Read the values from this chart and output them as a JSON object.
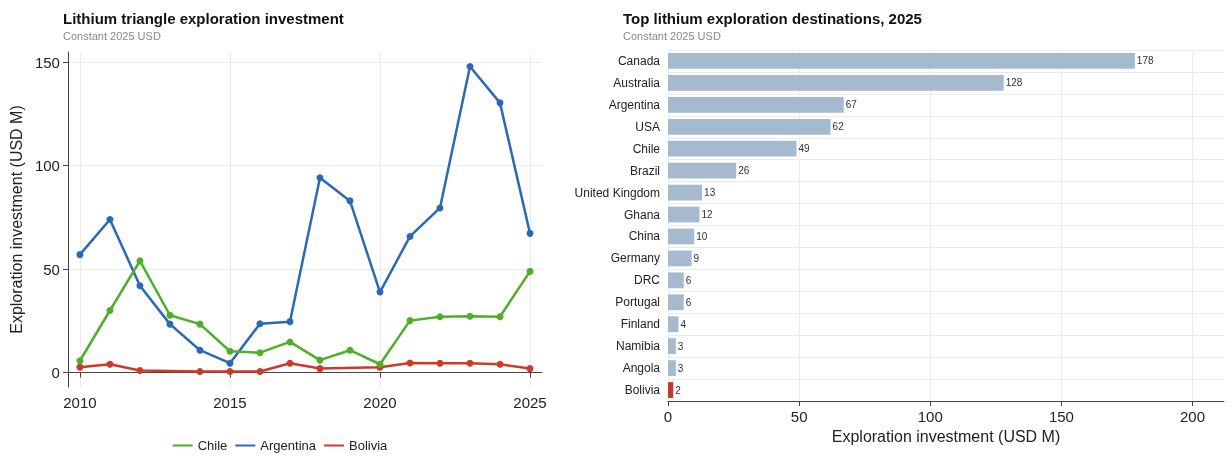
{
  "chart_data": [
    {
      "type": "line",
      "title": "Lithium triangle exploration investment",
      "subtitle": "Constant 2025 USD",
      "ylabel": "Exploration investment (USD M)",
      "x": [
        2010,
        2011,
        2012,
        2013,
        2014,
        2015,
        2016,
        2017,
        2018,
        2019,
        2020,
        2021,
        2022,
        2023,
        2024,
        2025
      ],
      "series": [
        {
          "name": "Chile",
          "color": "#4daf2a",
          "values": [
            5.7,
            30,
            54,
            27.7,
            23.4,
            10.3,
            9.6,
            14.8,
            6,
            10.8,
            4,
            25.1,
            27,
            27.2,
            27,
            48.9
          ]
        },
        {
          "name": "Argentina",
          "color": "#2a6ab4",
          "values": [
            57,
            74,
            42,
            23.4,
            10.8,
            4.5,
            23.6,
            24.6,
            94.2,
            83,
            38.9,
            65.8,
            79.6,
            148,
            130.4,
            67.3
          ]
        },
        {
          "name": "Bolivia",
          "color": "#cc3a2b",
          "values": [
            2.6,
            4,
            1,
            null,
            0.5,
            0.5,
            0.5,
            4.5,
            1.9,
            null,
            2.6,
            4.6,
            4.5,
            4.5,
            4,
            1.9
          ]
        }
      ],
      "xlim": [
        2009.6,
        2025.4
      ],
      "xticks": [
        2010,
        2015,
        2020,
        2025
      ],
      "ylim": [
        -7,
        155
      ],
      "yticks": [
        0,
        50,
        100,
        150
      ],
      "grid": true,
      "legend": "bottom",
      "marker": "circle",
      "line_style": "solid"
    },
    {
      "type": "bar",
      "orientation": "horizontal",
      "title": "Top lithium exploration destinations, 2025",
      "subtitle": "Constant 2025 USD",
      "xlabel": "Exploration investment (USD M)",
      "categories": [
        "Canada",
        "Australia",
        "Argentina",
        "USA",
        "Chile",
        "Brazil",
        "United Kingdom",
        "Ghana",
        "China",
        "Germany",
        "DRC",
        "Portugal",
        "Finland",
        "Namibia",
        "Angola",
        "Bolivia"
      ],
      "values": [
        178,
        128,
        67,
        62,
        49,
        26,
        13,
        12,
        10,
        9,
        6,
        6,
        4,
        3,
        3,
        2
      ],
      "colors": [
        "#a5b9cf",
        "#a5b9cf",
        "#a5b9cf",
        "#a5b9cf",
        "#a5b9cf",
        "#a5b9cf",
        "#a5b9cf",
        "#a5b9cf",
        "#a5b9cf",
        "#a5b9cf",
        "#a5b9cf",
        "#a5b9cf",
        "#a5b9cf",
        "#a5b9cf",
        "#a5b9cf",
        "#c0392b"
      ],
      "xlim": [
        0,
        212
      ],
      "xticks": [
        0,
        50,
        100,
        150,
        200
      ],
      "grid": true,
      "data_labels": true,
      "legend": false
    }
  ]
}
